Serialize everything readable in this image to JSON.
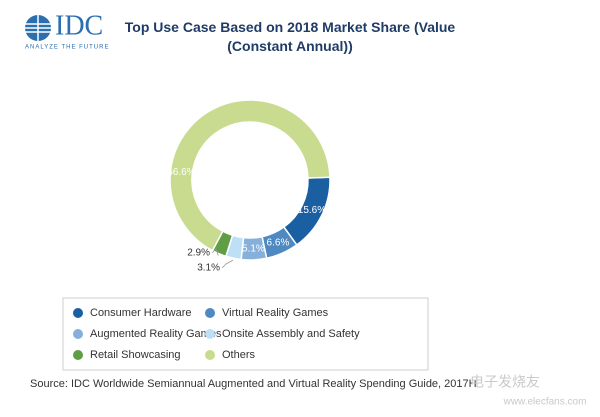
{
  "logo": {
    "name": "IDC",
    "tagline": "ANALYZE THE FUTURE"
  },
  "chart_data": {
    "type": "donut",
    "title": "Top Use Case Based on 2018 Market Share (Value (Constant Annual))",
    "categories": [
      "Consumer Hardware",
      "Virtual Reality Games",
      "Augmented Reality Games",
      "Onsite Assembly and Safety",
      "Retail Showcasing",
      "Others"
    ],
    "values": [
      15.6,
      6.6,
      5.1,
      3.1,
      2.9,
      66.6
    ],
    "value_labels": [
      "15.6%",
      "6.6%",
      "5.1%",
      "3.1%",
      "2.9%",
      "66.6%"
    ],
    "colors": [
      "#1b5fa3",
      "#4f89c2",
      "#86b0da",
      "#bde0f6",
      "#5f9e45",
      "#c8db8e"
    ],
    "source": "Source: IDC Worldwide Semiannual Augmented and Virtual Reality Spending Guide, 2017H"
  },
  "watermark": {
    "name": "电子发烧友",
    "url": "www.elecfans.com"
  }
}
